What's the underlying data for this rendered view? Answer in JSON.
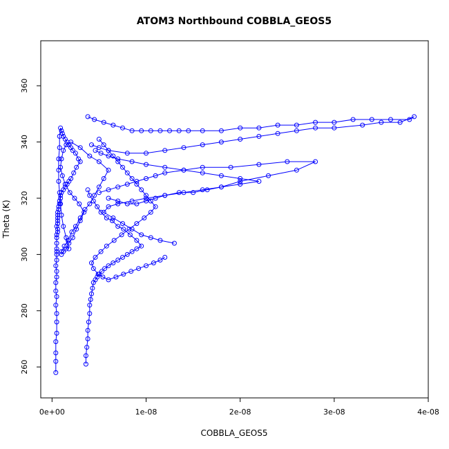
{
  "chart_data": {
    "type": "scatter",
    "title": "ATOM3 Northbound COBBLA_GEOS5",
    "xlabel": "COBBLA_GEOS5",
    "ylabel": "Theta (K)",
    "xlim": [
      -1.2e-09,
      4e-08
    ],
    "ylim": [
      249,
      376
    ],
    "x_ticks": [
      0,
      1e-08,
      2e-08,
      3e-08,
      4e-08
    ],
    "x_tick_labels": [
      "0e+00",
      "1e-08",
      "2e-08",
      "3e-08",
      "4e-08"
    ],
    "y_ticks": [
      260,
      280,
      300,
      320,
      340,
      360
    ],
    "y_tick_labels": [
      "260",
      "280",
      "300",
      "320",
      "340",
      "360"
    ],
    "marker": "open-circle",
    "connected": true,
    "color": "#0000ff",
    "grid": false,
    "legend": "none",
    "series": [
      {
        "x": [
          4e-10,
          4e-10,
          4e-10,
          4e-10,
          5e-10,
          5e-10,
          5e-10,
          4e-10,
          5e-10,
          4e-10,
          4e-10,
          5e-10,
          5e-10,
          4e-10,
          5e-10,
          5e-10,
          5e-10,
          5e-10,
          5e-10,
          5e-10,
          5e-10,
          6e-10,
          6e-10,
          5e-10,
          6e-10,
          6e-10,
          6e-10,
          6e-10,
          6e-10,
          7e-10,
          7e-10,
          8e-10,
          8e-10,
          9e-10,
          9e-10,
          1e-09,
          1.2e-09,
          1.4e-09,
          1.6e-09,
          1.8e-09,
          2e-09,
          2.3e-09,
          2.6e-09,
          3e-09,
          2.8e-09,
          2.5e-09,
          2.2e-09,
          2e-09,
          1.8e-09,
          1.6e-09,
          1.4e-09,
          1.2e-09,
          1.1e-09,
          1e-09,
          9e-10,
          8e-10,
          8e-10,
          7e-10,
          7e-10,
          7e-10,
          8e-10,
          9e-10,
          1e-09,
          1.2e-09,
          1.5e-09,
          1.8e-09
        ],
        "y": [
          258,
          262,
          265,
          269,
          272,
          276,
          279,
          282,
          285,
          287,
          290,
          292,
          294,
          296,
          298,
          300,
          301,
          302,
          304,
          306,
          307,
          308,
          309,
          310,
          311,
          312,
          313,
          314,
          315,
          316,
          317,
          318,
          319,
          320,
          321,
          322,
          323,
          324,
          325,
          326,
          327,
          329,
          331,
          333,
          334,
          336,
          337,
          338,
          339,
          340,
          341,
          342,
          343,
          344,
          345,
          342,
          338,
          334,
          330,
          326,
          322,
          318,
          314,
          310,
          306,
          302
        ]
      },
      {
        "x": [
          1e-09,
          1.3e-09,
          1.7e-09,
          2.1e-09,
          2.5e-09,
          3e-09,
          3.5e-09,
          4e-09,
          4.5e-09,
          5e-09,
          5.5e-09,
          6e-09,
          5e-09,
          4e-09,
          3e-09,
          2e-09,
          1.5e-09,
          1.2e-09,
          1e-09,
          9e-10,
          1.1e-09,
          1.4e-09,
          1.9e-09,
          2.4e-09,
          2.9e-09,
          3.4e-09,
          3e-09,
          2.6e-09,
          2.2e-09,
          1.8e-09,
          1.5e-09,
          1.2e-09,
          1e-09
        ],
        "y": [
          301,
          303,
          305,
          308,
          310,
          313,
          316,
          318,
          321,
          324,
          327,
          330,
          333,
          335,
          338,
          340,
          339,
          337,
          334,
          331,
          328,
          325,
          322,
          320,
          318,
          315,
          312,
          309,
          306,
          304,
          302,
          301,
          300
        ]
      },
      {
        "x": [
          3.6e-09,
          3.6e-09,
          3.7e-09,
          3.8e-09,
          3.8e-09,
          3.9e-09,
          4e-09,
          4e-09,
          4.1e-09,
          4.2e-09,
          4.3e-09,
          4.4e-09,
          4.6e-09,
          4.8e-09,
          5e-09,
          5.3e-09,
          5.6e-09,
          6e-09,
          6.5e-09,
          7e-09,
          7.5e-09,
          8e-09,
          8.5e-09,
          9e-09,
          9.5e-09,
          9e-09,
          8.3e-09,
          7.6e-09,
          7e-09,
          6.4e-09,
          5.8e-09,
          5.2e-09,
          4.8e-09,
          4.4e-09,
          4e-09,
          3.8e-09
        ],
        "y": [
          261,
          264,
          267,
          270,
          273,
          276,
          279,
          282,
          284,
          286,
          288,
          290,
          291,
          292,
          293,
          294,
          295,
          296,
          297,
          298,
          299,
          300,
          301,
          302,
          303,
          305,
          307,
          309,
          310,
          312,
          313,
          315,
          317,
          319,
          321,
          323
        ]
      },
      {
        "x": [
          3.8e-09,
          4.5e-09,
          5.5e-09,
          6.5e-09,
          7.5e-09,
          8.5e-09,
          9.5e-09,
          1.05e-08,
          1.15e-08,
          1.25e-08,
          1.35e-08,
          1.45e-08,
          1.6e-08,
          1.8e-08,
          2e-08,
          2.2e-08,
          2.4e-08,
          2.6e-08,
          2.8e-08,
          3e-08,
          3.2e-08,
          3.4e-08,
          3.6e-08,
          3.8e-08,
          3.85e-08,
          3.7e-08,
          3.5e-08,
          3.3e-08,
          3e-08,
          2.8e-08,
          2.6e-08,
          2.4e-08,
          2.2e-08,
          2e-08,
          1.8e-08,
          1.6e-08,
          1.4e-08,
          1.2e-08,
          1e-08,
          8e-09,
          6e-09,
          5e-09,
          4.2e-09
        ],
        "y": [
          349,
          348,
          347,
          346,
          345,
          344,
          344,
          344,
          344,
          344,
          344,
          344,
          344,
          344,
          345,
          345,
          346,
          346,
          347,
          347,
          348,
          348,
          348,
          348,
          349,
          347,
          347,
          346,
          345,
          345,
          344,
          343,
          342,
          341,
          340,
          339,
          338,
          337,
          336,
          336,
          337,
          338,
          339
        ]
      },
      {
        "x": [
          5e-09,
          6e-09,
          7e-09,
          8e-09,
          9e-09,
          1e-08,
          1.1e-08,
          1.2e-08,
          1.4e-08,
          1.6e-08,
          1.9e-08,
          2.2e-08,
          2.5e-08,
          2.8e-08,
          2.6e-08,
          2.3e-08,
          2e-08,
          1.8e-08,
          1.6e-08,
          1.4e-08,
          1.2e-08,
          1e-08,
          8.5e-09,
          7e-09,
          6e-09,
          5.5e-09,
          6.5e-09,
          7.5e-09,
          8.5e-09,
          9.5e-09,
          1.05e-08,
          1.15e-08,
          1.3e-08
        ],
        "y": [
          322,
          323,
          324,
          325,
          326,
          327,
          328,
          329,
          330,
          331,
          331,
          332,
          333,
          333,
          330,
          328,
          326,
          324,
          323,
          322,
          321,
          320,
          319,
          318,
          317,
          315,
          313,
          311,
          309,
          307,
          306,
          305,
          304
        ]
      },
      {
        "x": [
          6e-09,
          7e-09,
          8e-09,
          9e-09,
          1e-08,
          1.1e-08,
          1.2e-08,
          1.35e-08,
          1.5e-08,
          1.65e-08,
          1.8e-08,
          2e-08,
          2.2e-08,
          2e-08,
          1.8e-08,
          1.6e-08,
          1.4e-08,
          1.2e-08,
          1e-08,
          8.5e-09,
          7e-09,
          6e-09,
          5.2e-09,
          4.6e-09
        ],
        "y": [
          320,
          319,
          318,
          318,
          319,
          320,
          321,
          322,
          322,
          323,
          324,
          325,
          326,
          327,
          328,
          329,
          330,
          331,
          332,
          333,
          334,
          335,
          336,
          337
        ]
      },
      {
        "x": [
          5e-09,
          5.5e-09,
          6e-09,
          6.5e-09,
          7e-09,
          7.5e-09,
          8e-09,
          8.5e-09,
          9e-09,
          9.5e-09,
          1e-08,
          1.05e-08,
          1.1e-08,
          1.05e-08,
          9.8e-09,
          9e-09,
          8.2e-09,
          7.4e-09,
          6.6e-09,
          5.8e-09,
          5.2e-09,
          4.6e-09,
          4.2e-09,
          4.4e-09,
          4.9e-09,
          5.4e-09,
          6e-09,
          6.8e-09,
          7.6e-09,
          8.4e-09,
          9.2e-09,
          1e-08,
          1.08e-08,
          1.15e-08,
          1.2e-08
        ],
        "y": [
          341,
          339,
          337,
          335,
          333,
          331,
          329,
          327,
          325,
          323,
          321,
          319,
          317,
          315,
          313,
          311,
          309,
          307,
          305,
          303,
          301,
          299,
          297,
          295,
          293,
          292,
          291,
          292,
          293,
          294,
          295,
          296,
          297,
          298,
          299
        ]
      }
    ]
  }
}
